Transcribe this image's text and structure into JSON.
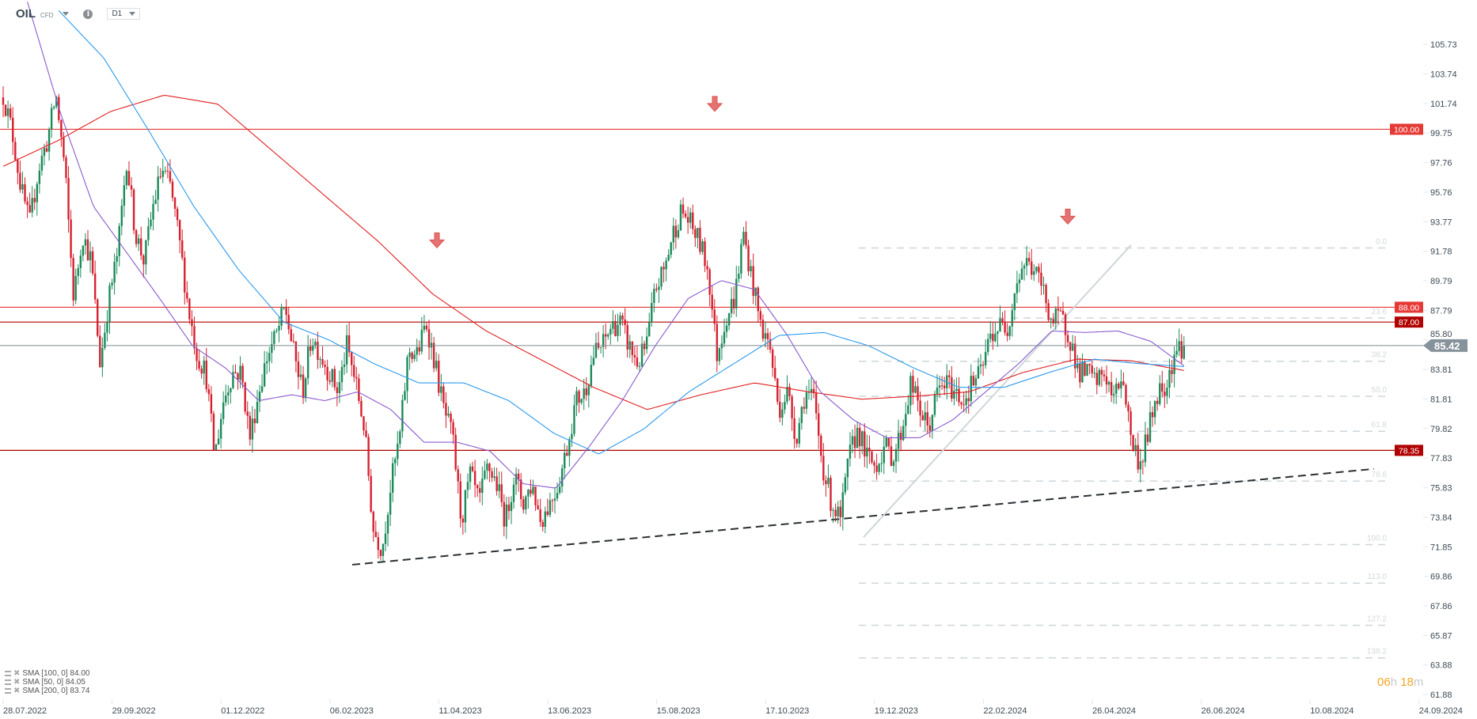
{
  "header": {
    "symbol": "OIL",
    "instrument_type": "CFD",
    "timeframe": "D1",
    "icons": [
      "chevron-down-icon",
      "info-icon"
    ]
  },
  "legend": [
    {
      "label": "SMA [100, 0] 84.00",
      "color": "#2b9bf0"
    },
    {
      "label": "SMA [50, 0] 84.05",
      "color": "#8a5ad0"
    },
    {
      "label": "SMA [200, 0] 83.74",
      "color": "#e02020"
    }
  ],
  "timer": {
    "hours": "06",
    "h": "h",
    "minutes": "18",
    "m": "m"
  },
  "colors": {
    "up": "#1b8a5a",
    "down": "#d5202e",
    "accent_timer": "#f5a623"
  },
  "chart_data": {
    "type": "candlestick",
    "timeframe": "D1",
    "x_tick_labels": [
      "28.07.2022",
      "29.09.2022",
      "01.12.2022",
      "06.02.2023",
      "11.04.2023",
      "13.06.2023",
      "15.08.2023",
      "17.10.2023",
      "19.12.2023",
      "22.02.2024",
      "26.04.2024",
      "26.06.2024",
      "10.08.2024",
      "24.09.2024"
    ],
    "y_tick_labels": [
      "105.73",
      "103.74",
      "101.74",
      "99.75",
      "97.76",
      "95.76",
      "93.77",
      "91.78",
      "89.79",
      "87.79",
      "85.80",
      "83.81",
      "81.81",
      "79.82",
      "77.83",
      "75.83",
      "73.84",
      "71.85",
      "69.86",
      "67.86",
      "65.87",
      "63.88",
      "61.88"
    ],
    "ylim": [
      61.88,
      105.73
    ],
    "last_price": "85.42",
    "close_path": [
      102.3,
      99.9,
      96.1,
      93.6,
      97.3,
      99.2,
      102.3,
      97.3,
      88.6,
      93.0,
      91.1,
      84.2,
      88.6,
      91.7,
      98.0,
      93.0,
      91.1,
      94.8,
      97.3,
      96.1,
      92.4,
      88.0,
      84.8,
      83.6,
      77.9,
      81.7,
      83.6,
      83.6,
      79.2,
      82.3,
      84.8,
      86.1,
      88.0,
      84.8,
      82.3,
      86.1,
      84.8,
      83.6,
      82.3,
      85.4,
      82.9,
      79.8,
      73.0,
      71.7,
      76.1,
      79.2,
      85.1,
      84.8,
      87.0,
      84.2,
      81.1,
      79.2,
      73.6,
      76.7,
      74.8,
      77.3,
      76.1,
      73.6,
      76.7,
      74.8,
      76.1,
      73.6,
      74.8,
      76.1,
      78.6,
      81.7,
      82.3,
      84.8,
      85.4,
      86.7,
      87.0,
      85.4,
      84.2,
      85.4,
      89.2,
      90.5,
      93.0,
      94.5,
      93.6,
      92.4,
      90.5,
      84.8,
      87.3,
      88.6,
      93.0,
      89.8,
      86.7,
      85.4,
      81.1,
      82.3,
      79.2,
      82.3,
      81.7,
      77.3,
      74.8,
      73.6,
      77.9,
      79.8,
      77.9,
      77.3,
      78.6,
      77.9,
      79.8,
      82.9,
      81.1,
      79.8,
      82.3,
      82.9,
      82.3,
      81.7,
      82.9,
      83.6,
      86.1,
      86.7,
      86.7,
      89.8,
      91.1,
      90.5,
      89.2,
      87.0,
      87.3,
      86.1,
      83.6,
      83.6,
      82.9,
      83.6,
      81.7,
      83.6,
      79.2,
      77.3,
      79.8,
      82.3,
      82.9,
      85.1,
      85.42
    ],
    "series": [
      {
        "name": "SMA [200, 0]",
        "color": "#e02020",
        "path": [
          97.5,
          99.2,
          101.2,
          102.3,
          101.7,
          98.6,
          95.5,
          92.4,
          88.9,
          86.4,
          84.5,
          82.6,
          81.1,
          82.1,
          82.9,
          82.3,
          81.8,
          82.0,
          82.3,
          83.6,
          84.5,
          84.4,
          83.74
        ]
      },
      {
        "name": "SMA [50, 0]",
        "color": "#8a5ad0",
        "path": [
          108.6,
          101.1,
          94.8,
          91.7,
          88.6,
          85.4,
          83.9,
          81.7,
          82.1,
          81.7,
          82.3,
          81.1,
          78.9,
          78.9,
          78.3,
          76.1,
          75.8,
          78.6,
          81.7,
          85.4,
          88.6,
          89.8,
          89.2,
          86.1,
          82.3,
          80.4,
          79.2,
          79.2,
          80.4,
          82.3,
          84.2,
          86.4,
          86.3,
          86.4,
          85.7,
          84.05
        ]
      },
      {
        "name": "SMA [100, 0]",
        "color": "#2b9bf0",
        "path": [
          108.0,
          104.8,
          99.9,
          94.8,
          90.5,
          87.0,
          85.8,
          84.2,
          82.9,
          82.9,
          81.7,
          79.5,
          78.1,
          79.8,
          82.3,
          84.2,
          86.1,
          86.3,
          85.4,
          83.9,
          82.6,
          82.6,
          83.6,
          84.5,
          84.2,
          84.0
        ]
      }
    ],
    "horizontal_levels": [
      {
        "price": 100.0,
        "label": "100.00",
        "color": "#e53935"
      },
      {
        "price": 88.0,
        "label": "88.00",
        "color": "#e53935"
      },
      {
        "price": 87.0,
        "label": "87.00",
        "color": "#b00000"
      },
      {
        "price": 78.35,
        "label": "78.35",
        "color": "#b00000"
      }
    ],
    "fibonacci": {
      "high": 92.0,
      "low": 72.0,
      "levels": [
        "0.0",
        "23.6",
        "38.2",
        "50.0",
        "61.8",
        "78.6",
        "100.0",
        "113.0",
        "127.2",
        "138.2"
      ],
      "color": "#cfd6da"
    },
    "trendlines": [
      {
        "style": "dashed",
        "color": "#2a2f33",
        "from_price": 70.64,
        "to_price": 77.1
      },
      {
        "style": "solid",
        "color": "#cfd6da",
        "from_price": 72.5,
        "to_price": 92.2
      }
    ],
    "markers": [
      {
        "type": "down-arrow",
        "price": 92.7
      },
      {
        "type": "down-arrow",
        "price": 101.9
      },
      {
        "type": "down-arrow",
        "price": 94.3
      }
    ]
  }
}
